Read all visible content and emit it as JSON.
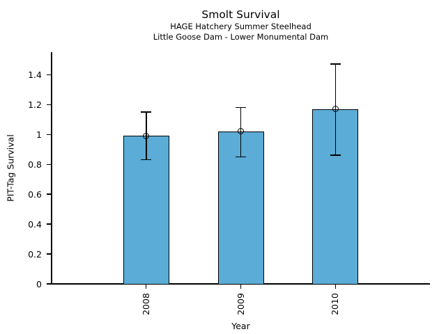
{
  "chart": {
    "title": "Smolt Survival",
    "subtitle1": "HAGE Hatchery Summer Steelhead",
    "subtitle2": "Little Goose Dam - Lower Monumental Dam",
    "xlabel": "Year",
    "ylabel": "PIT-Tag Survival"
  },
  "chart_data": {
    "type": "bar",
    "title": "Smolt Survival",
    "subtitles": [
      "HAGE Hatchery Summer Steelhead",
      "Little Goose Dam - Lower Monumental Dam"
    ],
    "categories": [
      "2008",
      "2009",
      "2010"
    ],
    "values": [
      0.99,
      1.02,
      1.17
    ],
    "error_low": [
      0.83,
      0.85,
      0.86
    ],
    "error_high": [
      1.15,
      1.18,
      1.47
    ],
    "xlabel": "Year",
    "ylabel": "PIT-Tag Survival",
    "ylim": [
      0,
      1.55
    ],
    "y_ticks": [
      0,
      0.2,
      0.4,
      0.6,
      0.8,
      1.0,
      1.2,
      1.4
    ],
    "y_tick_labels": [
      "0",
      "0.2",
      "0.4",
      "0.6",
      "0.8",
      "1",
      "1.2",
      "1.4"
    ],
    "grid": false,
    "legend": null,
    "marker": "open-circle",
    "colors": {
      "bar_fill": "#5BACD6",
      "bar_edge": "#000000",
      "error_bar": "#000000",
      "text": "#000000",
      "background": "#ffffff"
    }
  }
}
